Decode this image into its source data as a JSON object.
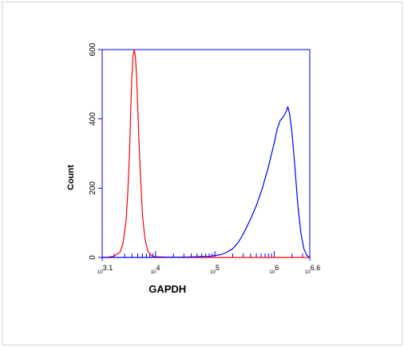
{
  "chart_data": {
    "type": "line",
    "xlabel": "GAPDH",
    "ylabel": "Count",
    "x_scale": "log10",
    "xlim_exponent": [
      3.1,
      6.6
    ],
    "ylim": [
      0,
      600
    ],
    "grid": false,
    "axis_color": "#0000ff",
    "y_ticks": [
      {
        "value": 0,
        "label": "0"
      },
      {
        "value": 200,
        "label": "200"
      },
      {
        "value": 400,
        "label": "400"
      },
      {
        "value": 600,
        "label": "600"
      }
    ],
    "x_tick_labels": [
      {
        "exponent": 3.1,
        "base": "10",
        "exp": "3.1"
      },
      {
        "exponent": 4,
        "base": "10",
        "exp": "4"
      },
      {
        "exponent": 5,
        "base": "10",
        "exp": "5"
      },
      {
        "exponent": 6,
        "base": "10",
        "exp": "6"
      },
      {
        "exponent": 6.6,
        "base": "10",
        "exp": "6.6"
      }
    ],
    "series": [
      {
        "color": "#ff0000",
        "points": [
          [
            3.1,
            0
          ],
          [
            3.2,
            1
          ],
          [
            3.3,
            4
          ],
          [
            3.4,
            15
          ],
          [
            3.45,
            40
          ],
          [
            3.5,
            100
          ],
          [
            3.53,
            180
          ],
          [
            3.56,
            300
          ],
          [
            3.58,
            420
          ],
          [
            3.6,
            520
          ],
          [
            3.62,
            580
          ],
          [
            3.64,
            600
          ],
          [
            3.66,
            580
          ],
          [
            3.68,
            520
          ],
          [
            3.7,
            430
          ],
          [
            3.72,
            330
          ],
          [
            3.75,
            220
          ],
          [
            3.78,
            120
          ],
          [
            3.82,
            55
          ],
          [
            3.87,
            18
          ],
          [
            3.93,
            5
          ],
          [
            4.0,
            2
          ],
          [
            4.2,
            1
          ],
          [
            4.5,
            0
          ],
          [
            5.0,
            0
          ],
          [
            6.6,
            0
          ]
        ]
      },
      {
        "color": "#0000ff",
        "points": [
          [
            3.1,
            0
          ],
          [
            4.0,
            0
          ],
          [
            4.5,
            1
          ],
          [
            4.9,
            3
          ],
          [
            5.1,
            8
          ],
          [
            5.2,
            15
          ],
          [
            5.3,
            25
          ],
          [
            5.4,
            45
          ],
          [
            5.5,
            75
          ],
          [
            5.6,
            110
          ],
          [
            5.7,
            150
          ],
          [
            5.8,
            200
          ],
          [
            5.9,
            260
          ],
          [
            6.0,
            330
          ],
          [
            6.05,
            370
          ],
          [
            6.1,
            395
          ],
          [
            6.15,
            405
          ],
          [
            6.2,
            420
          ],
          [
            6.23,
            435
          ],
          [
            6.26,
            415
          ],
          [
            6.3,
            360
          ],
          [
            6.35,
            260
          ],
          [
            6.4,
            150
          ],
          [
            6.45,
            70
          ],
          [
            6.5,
            25
          ],
          [
            6.55,
            6
          ],
          [
            6.6,
            0
          ]
        ]
      }
    ]
  }
}
